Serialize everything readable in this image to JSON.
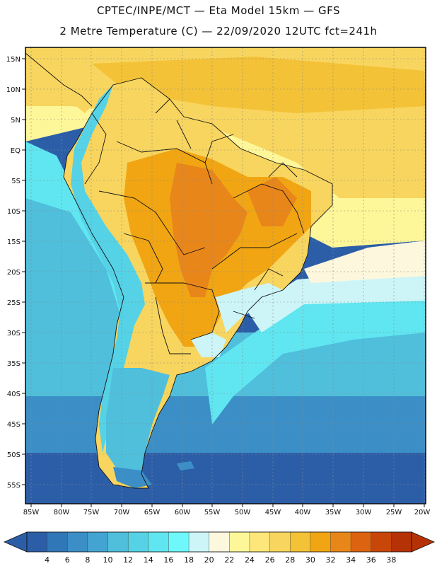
{
  "header": {
    "line1": "CPTEC/INPE/MCT —  Eta Model 15km — GFS",
    "line2": "2 Metre Temperature (C) — 22/09/2020 12UTC fct=241h"
  },
  "axes": {
    "lat_labels": [
      "15N",
      "10N",
      "5N",
      "EQ",
      "5S",
      "10S",
      "15S",
      "20S",
      "25S",
      "30S",
      "35S",
      "40S",
      "45S",
      "50S",
      "55S"
    ],
    "lon_labels": [
      "85W",
      "80W",
      "75W",
      "70W",
      "65W",
      "60W",
      "55W",
      "50W",
      "45W",
      "40W",
      "35W",
      "30W",
      "25W",
      "20W"
    ]
  },
  "colorbar": {
    "labels": [
      "4",
      "6",
      "8",
      "10",
      "12",
      "14",
      "16",
      "18",
      "20",
      "22",
      "24",
      "26",
      "28",
      "30",
      "32",
      "34",
      "36",
      "38"
    ],
    "colors": [
      "#2c5ea8",
      "#3077b8",
      "#3b8fc6",
      "#43a4d2",
      "#4fbfdc",
      "#55d2e6",
      "#60e6f0",
      "#6ff8fb",
      "#cdf5f8",
      "#fdf7dd",
      "#fef799",
      "#fde67a",
      "#f8d55e",
      "#f3c237",
      "#f1a512",
      "#e8861a",
      "#dc6410",
      "#c8460a",
      "#b53206"
    ],
    "left_end_color": "#2c5ea8",
    "right_end_color": "#b53206"
  },
  "palette": {
    "ocean_deep": "#2c5ea8",
    "ocean_mid": "#3b8fc6",
    "ocean_cool": "#4fbfdc",
    "ocean_cyan": "#60e6f0",
    "ocean_pale": "#cdf5f8",
    "warm_pale": "#fdf7dd",
    "warm_yellow": "#fef799",
    "warm_gold": "#f8d55e",
    "warm_amber": "#f3c237",
    "warm_orange": "#f1a512",
    "hot": "#e8861a",
    "andes_cold": "#55d2e6",
    "border": "#111111"
  }
}
